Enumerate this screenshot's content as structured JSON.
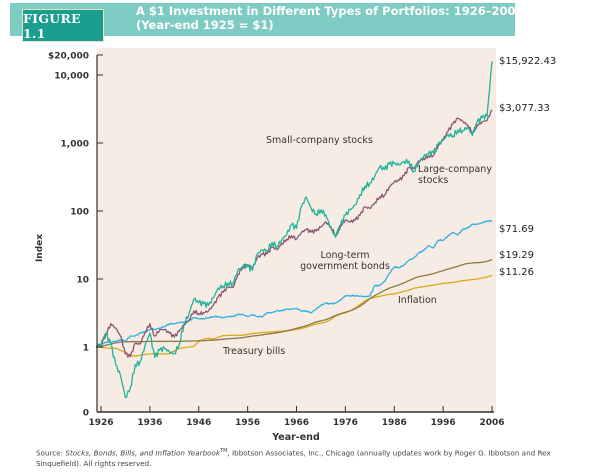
{
  "figure": {
    "label": "FIGURE 1.1",
    "title_line1": "A $1 Investment in Different Types of Portfolios: 1926–2006",
    "title_line2": "(Year-end 1925 = $1)"
  },
  "source": {
    "prefix": "Source: ",
    "italic": "Stocks, Bonds, Bills, and Inflation Yearbook",
    "tm": "TM",
    "rest": ", Ibbotson Associates, Inc., Chicago (annually updates work by Roger G. Ibbotson and Rex Sinquefield). All rights reserved."
  },
  "chart_data": {
    "type": "line",
    "title": "A $1 Investment in Different Types of Portfolios: 1926–2006 (Year-end 1925 = $1)",
    "xlabel": "Year-end",
    "ylabel": "Index",
    "yscale": "log",
    "xlim": [
      1925,
      2006
    ],
    "ylim": [
      0.1,
      20000
    ],
    "x_ticks": [
      "1926",
      "1936",
      "1946",
      "1956",
      "1966",
      "1976",
      "1986",
      "1996",
      "2006"
    ],
    "y_ticks": [
      {
        "value": 0.1,
        "label": "0"
      },
      {
        "value": 1,
        "label": "1"
      },
      {
        "value": 10,
        "label": "10"
      },
      {
        "value": 100,
        "label": "100"
      },
      {
        "value": 1000,
        "label": "1,000"
      },
      {
        "value": 10000,
        "label": "10,000"
      },
      {
        "value": 20000,
        "label": "$20,000"
      }
    ],
    "grid": false,
    "x": [
      1925,
      1926,
      1927,
      1928,
      1929,
      1930,
      1931,
      1932,
      1933,
      1934,
      1935,
      1936,
      1937,
      1938,
      1939,
      1940,
      1941,
      1942,
      1943,
      1944,
      1945,
      1946,
      1947,
      1948,
      1949,
      1950,
      1951,
      1952,
      1953,
      1954,
      1955,
      1956,
      1957,
      1958,
      1959,
      1960,
      1961,
      1962,
      1963,
      1964,
      1965,
      1966,
      1967,
      1968,
      1969,
      1970,
      1971,
      1972,
      1973,
      1974,
      1975,
      1976,
      1977,
      1978,
      1979,
      1980,
      1981,
      1982,
      1983,
      1984,
      1985,
      1986,
      1987,
      1988,
      1989,
      1990,
      1991,
      1992,
      1993,
      1994,
      1995,
      1996,
      1997,
      1998,
      1999,
      2000,
      2001,
      2002,
      2003,
      2004,
      2005,
      2006
    ],
    "series": [
      {
        "name": "Small-company stocks",
        "end_label": "$15,922.43",
        "color": "#1fb39a",
        "values": [
          1,
          1.1,
          1.6,
          1.1,
          0.55,
          0.38,
          0.18,
          0.25,
          0.55,
          0.6,
          1.05,
          1.6,
          0.7,
          0.9,
          0.95,
          0.85,
          0.8,
          1.1,
          2.2,
          3.1,
          5.1,
          4.5,
          4.3,
          4.1,
          5.3,
          7.4,
          7.9,
          8.7,
          8.7,
          13.4,
          15.1,
          15.3,
          13.5,
          23.4,
          26.9,
          26.4,
          34.7,
          30,
          38.1,
          45.1,
          63,
          55.7,
          115,
          160,
          110,
          90,
          104,
          88,
          56,
          41,
          62,
          87,
          104,
          122,
          174,
          233,
          256,
          325,
          447,
          406,
          494,
          497,
          478,
          539,
          541,
          377,
          521,
          632,
          692,
          717,
          946,
          1102,
          1332,
          1275,
          1551,
          1520,
          1725,
          1295,
          2026,
          2364,
          2495,
          15922.43
        ]
      },
      {
        "name": "Large-company stocks",
        "end_label": "$3,077.33",
        "color": "#8b5670",
        "values": [
          1,
          1.12,
          1.53,
          2.2,
          1.9,
          1.45,
          0.79,
          0.72,
          1.13,
          1.1,
          1.64,
          2.2,
          1.44,
          1.8,
          1.8,
          1.6,
          1.4,
          1.7,
          2.1,
          2.5,
          3.4,
          3.1,
          3.2,
          3.4,
          4.1,
          5.4,
          6.4,
          7.6,
          7.5,
          11.6,
          15.2,
          16.2,
          14.5,
          20.6,
          23.1,
          23.3,
          29.5,
          27,
          33,
          38.5,
          43.3,
          38.9,
          48.2,
          53.5,
          49,
          50.9,
          58.2,
          69.3,
          59.2,
          43.5,
          59.7,
          74,
          68.8,
          73.2,
          86.7,
          115,
          109,
          132,
          162,
          172,
          226,
          268,
          282,
          329,
          433,
          419,
          547,
          589,
          648,
          656,
          902,
          1110,
          1480,
          1903,
          2304,
          2094,
          1845,
          1437,
          1850,
          2051,
          2151,
          3077.33
        ]
      },
      {
        "name": "Long-term government bonds",
        "end_label": "$71.69",
        "color": "#2fb0e0",
        "values": [
          1,
          1.08,
          1.17,
          1.18,
          1.22,
          1.28,
          1.23,
          1.45,
          1.45,
          1.6,
          1.68,
          1.8,
          1.81,
          1.9,
          2.0,
          2.2,
          2.2,
          2.3,
          2.3,
          2.4,
          2.7,
          2.6,
          2.6,
          2.7,
          2.8,
          2.8,
          2.7,
          2.8,
          2.8,
          3.0,
          3.0,
          2.8,
          3.0,
          2.8,
          2.8,
          3.2,
          3.2,
          3.4,
          3.4,
          3.6,
          3.6,
          3.7,
          3.4,
          3.4,
          3.2,
          3.6,
          4.1,
          4.4,
          4.3,
          4.4,
          4.9,
          5.7,
          5.7,
          5.7,
          5.6,
          5.5,
          5.6,
          8.0,
          8.0,
          9.2,
          12.1,
          15.1,
          14.7,
          16.1,
          19.0,
          20.2,
          24.1,
          26.1,
          30.9,
          28.5,
          37.5,
          37.1,
          43.1,
          48.6,
          44.4,
          53.6,
          55.9,
          63.7,
          63.8,
          67.4,
          71.6,
          71.69
        ]
      },
      {
        "name": "Treasury bills",
        "end_label": "$19.29",
        "color": "#8a7a45",
        "values": [
          1,
          1.03,
          1.06,
          1.1,
          1.15,
          1.18,
          1.19,
          1.2,
          1.2,
          1.2,
          1.2,
          1.21,
          1.21,
          1.21,
          1.21,
          1.21,
          1.21,
          1.21,
          1.22,
          1.22,
          1.23,
          1.23,
          1.24,
          1.25,
          1.26,
          1.28,
          1.3,
          1.32,
          1.34,
          1.35,
          1.37,
          1.41,
          1.45,
          1.47,
          1.51,
          1.55,
          1.58,
          1.62,
          1.67,
          1.73,
          1.8,
          1.88,
          1.96,
          2.06,
          2.19,
          2.33,
          2.43,
          2.52,
          2.7,
          2.91,
          3.08,
          3.24,
          3.4,
          3.63,
          4.0,
          4.49,
          5.15,
          5.7,
          6.2,
          6.8,
          7.33,
          7.79,
          8.22,
          8.76,
          9.47,
          10.22,
          10.81,
          11.18,
          11.52,
          11.96,
          12.63,
          13.29,
          13.98,
          14.68,
          15.39,
          16.3,
          16.92,
          17.2,
          17.38,
          17.62,
          18.15,
          19.29
        ]
      },
      {
        "name": "Inflation",
        "end_label": "$11.26",
        "color": "#d9a81e",
        "values": [
          1,
          0.99,
          0.97,
          0.96,
          0.96,
          0.9,
          0.82,
          0.74,
          0.74,
          0.75,
          0.78,
          0.79,
          0.81,
          0.79,
          0.79,
          0.8,
          0.87,
          0.95,
          0.98,
          1.0,
          1.02,
          1.21,
          1.31,
          1.34,
          1.31,
          1.39,
          1.47,
          1.48,
          1.49,
          1.48,
          1.49,
          1.53,
          1.58,
          1.6,
          1.63,
          1.65,
          1.66,
          1.68,
          1.71,
          1.73,
          1.76,
          1.82,
          1.87,
          1.95,
          2.07,
          2.18,
          2.25,
          2.33,
          2.53,
          2.85,
          3.05,
          3.2,
          3.41,
          3.72,
          4.21,
          4.74,
          5.16,
          5.36,
          5.56,
          5.78,
          5.99,
          6.05,
          6.31,
          6.57,
          6.87,
          7.3,
          7.52,
          7.74,
          7.93,
          8.14,
          8.34,
          8.61,
          8.76,
          8.9,
          9.14,
          9.45,
          9.6,
          9.83,
          10.02,
          10.35,
          10.7,
          11.26
        ]
      }
    ],
    "annotations": [
      {
        "text": "Small-company stocks",
        "series": "Small-company stocks"
      },
      {
        "text": "Large-company\nstocks",
        "series": "Large-company stocks"
      },
      {
        "text": "Long-term\ngovernment bonds",
        "series": "Long-term government bonds"
      },
      {
        "text": "Inflation",
        "series": "Inflation"
      },
      {
        "text": "Treasury bills",
        "series": "Treasury bills"
      }
    ]
  }
}
